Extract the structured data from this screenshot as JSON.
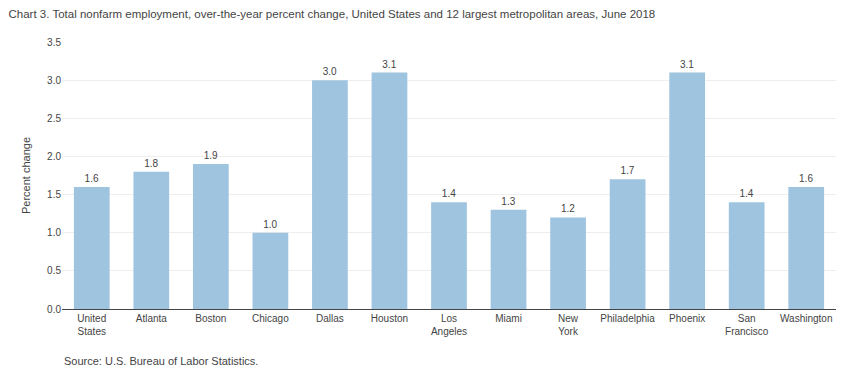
{
  "chart_data": {
    "type": "bar",
    "title": "Chart 3. Total nonfarm employment, over-the-year percent change, United States and 12 largest metropolitan areas, June 2018",
    "ylabel": "Percent change",
    "source": "Source: U.S. Bureau of Labor Statistics.",
    "categories": [
      "United\nStates",
      "Atlanta",
      "Boston",
      "Chicago",
      "Dallas",
      "Houston",
      "Los\nAngeles",
      "Miami",
      "New\nYork",
      "Philadelphia",
      "Phoenix",
      "San\nFrancisco",
      "Washington"
    ],
    "values": [
      1.6,
      1.8,
      1.9,
      1.0,
      3.0,
      3.1,
      1.4,
      1.3,
      1.2,
      1.7,
      3.1,
      1.4,
      1.6
    ],
    "value_labels": [
      "1.6",
      "1.8",
      "1.9",
      "1.0",
      "3.0",
      "3.1",
      "1.4",
      "1.3",
      "1.2",
      "1.7",
      "3.1",
      "1.4",
      "1.6"
    ],
    "data_labels": true,
    "color": "#9ec4e0",
    "ylim": [
      0,
      3.5
    ],
    "yticks": [
      {
        "value": 0,
        "label": "0.0"
      },
      0.5,
      {
        "value": 1,
        "label": "1.0"
      },
      1.5,
      {
        "value": 2,
        "label": "2.0"
      },
      2.5,
      {
        "value": 3,
        "label": "3.0"
      },
      3.5
    ],
    "grid": true
  }
}
